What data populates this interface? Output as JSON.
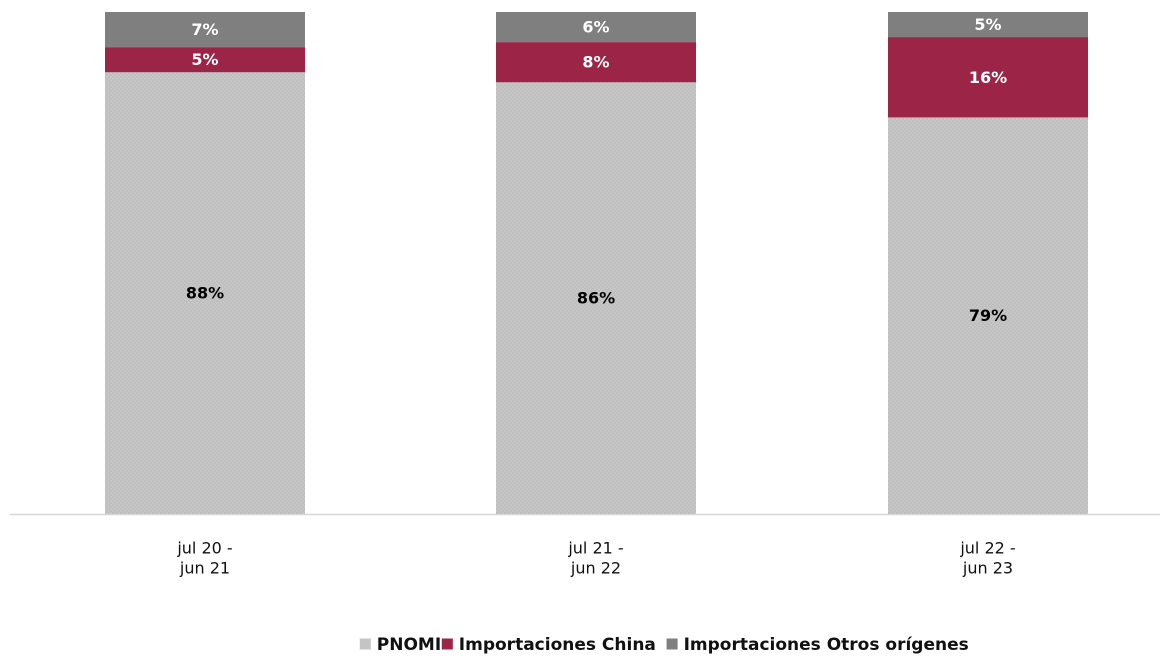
{
  "chart_data": {
    "type": "bar",
    "stacked": true,
    "percent_stacked": true,
    "categories": [
      [
        "jul 20 -",
        "jun 21"
      ],
      [
        "jul 21 -",
        "jun 22"
      ],
      [
        "jul 22 -",
        "jun 23"
      ]
    ],
    "series": [
      {
        "name": "PNOMI",
        "values": [
          88,
          86,
          79
        ],
        "labels": [
          "88%",
          "86%",
          "79%"
        ],
        "color": "#c4c4c4",
        "label_color": "#000000",
        "pattern": "dotted"
      },
      {
        "name": "Importaciones China",
        "values": [
          5,
          8,
          16
        ],
        "labels": [
          "5%",
          "8%",
          "16%"
        ],
        "color": "#9b2447",
        "label_color": "#ffffff"
      },
      {
        "name": "Importaciones Otros orígenes",
        "values": [
          7,
          6,
          5
        ],
        "labels": [
          "7%",
          "6%",
          "5%"
        ],
        "color": "#7f7f7f",
        "label_color": "#ffffff"
      }
    ],
    "ylim": [
      0,
      100
    ],
    "title": "",
    "xlabel": "",
    "ylabel": "",
    "grid": false,
    "y_axis_visible": false,
    "legend_position": "bottom"
  }
}
